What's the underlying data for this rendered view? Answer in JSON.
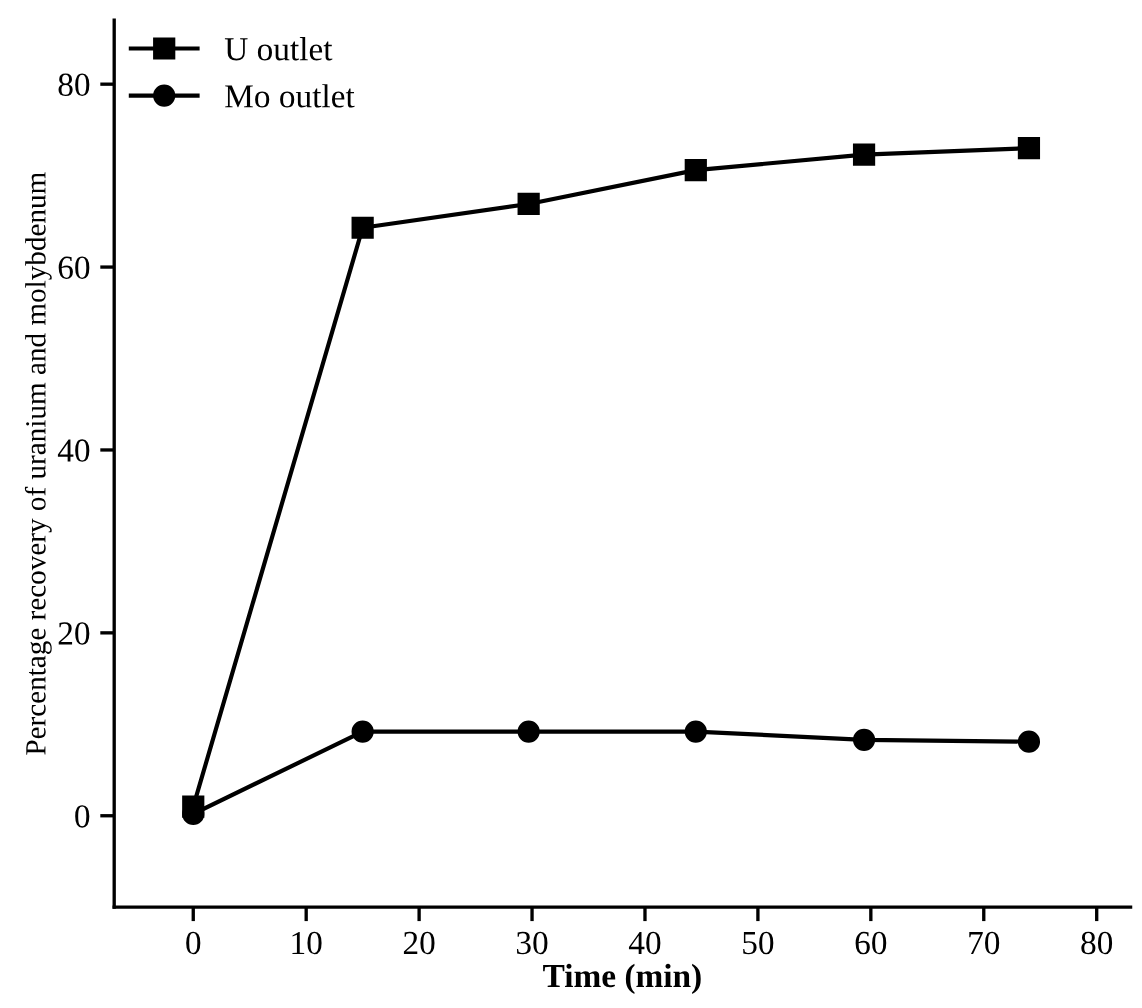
{
  "chart_data": {
    "type": "line",
    "xlabel": "Time (min)",
    "ylabel": "Percentage recovery of uranium and molybdenum",
    "xlim": [
      -7,
      83
    ],
    "xticks": [
      0,
      10,
      20,
      30,
      40,
      50,
      60,
      70,
      80
    ],
    "ylim": [
      -10,
      87
    ],
    "yticks": [
      0,
      20,
      40,
      60,
      80
    ],
    "legend": "top left",
    "grid": false,
    "line_style": "solid",
    "series": [
      {
        "name": "U outlet",
        "color": "#000000",
        "marker": "square",
        "x": [
          0,
          15,
          29.7,
          44.5,
          59.4,
          74
        ],
        "values": [
          1,
          64.3,
          66.9,
          70.6,
          72.3,
          73
        ]
      },
      {
        "name": "Mo outlet",
        "color": "#000000",
        "marker": "circle",
        "x": [
          0,
          15,
          29.7,
          44.5,
          59.4,
          74
        ],
        "values": [
          0.2,
          9.2,
          9.2,
          9.2,
          8.3,
          8.1
        ]
      }
    ]
  }
}
